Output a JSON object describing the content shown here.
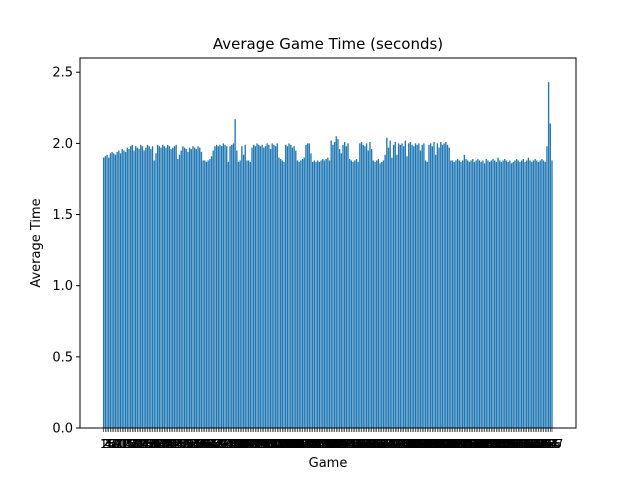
{
  "chart_data": {
    "type": "bar",
    "title": "Average Game Time (seconds)",
    "xlabel": "Game",
    "ylabel": "Average Time",
    "ylim": [
      0,
      2.6
    ],
    "yticks": [
      "0.0",
      "0.5",
      "1.0",
      "1.5",
      "2.0",
      "2.5"
    ],
    "xtick_labels_note": "x tick labels are illegibly overlapping game numbers (approx 1 to 200+); rendered as dense overlapping text",
    "grid": false,
    "legend": false,
    "bar_color": "#1f77b4",
    "values": [
      1.9,
      1.91,
      1.92,
      1.9,
      1.93,
      1.94,
      1.93,
      1.92,
      1.94,
      1.95,
      1.93,
      1.96,
      1.95,
      1.94,
      1.97,
      1.96,
      1.98,
      1.99,
      1.95,
      1.98,
      1.97,
      1.96,
      1.99,
      1.98,
      1.95,
      1.97,
      1.99,
      1.98,
      1.96,
      1.98,
      1.88,
      1.93,
      1.99,
      1.98,
      1.97,
      1.99,
      1.98,
      1.97,
      1.99,
      1.98,
      1.96,
      1.97,
      1.98,
      1.99,
      1.89,
      1.92,
      1.95,
      1.98,
      1.97,
      1.96,
      1.94,
      1.97,
      1.96,
      1.98,
      1.97,
      1.96,
      1.98,
      1.97,
      1.94,
      1.88,
      1.88,
      1.87,
      1.88,
      1.89,
      1.91,
      1.95,
      1.98,
      1.99,
      1.98,
      1.99,
      1.98,
      2.0,
      1.99,
      1.98,
      1.87,
      1.98,
      1.99,
      2.0,
      2.17,
      1.95,
      1.87,
      1.88,
      1.98,
      1.92,
      1.99,
      1.88,
      1.88,
      1.87,
      1.97,
      1.99,
      1.98,
      2.0,
      1.99,
      1.98,
      1.99,
      1.97,
      1.98,
      2.0,
      1.99,
      1.96,
      2.0,
      1.99,
      1.98,
      2.0,
      1.9,
      1.89,
      1.88,
      1.87,
      1.99,
      1.98,
      2.0,
      1.99,
      1.97,
      1.98,
      1.95,
      1.88,
      1.87,
      1.88,
      1.89,
      1.9,
      1.99,
      2.0,
      2.0,
      1.93,
      1.87,
      1.88,
      1.87,
      1.88,
      1.87,
      1.88,
      1.89,
      1.88,
      1.89,
      1.9,
      1.88,
      2.02,
      1.99,
      2.01,
      2.05,
      2.03,
      1.96,
      1.93,
      1.99,
      2.01,
      1.98,
      2.0,
      1.89,
      1.88,
      1.87,
      1.88,
      1.89,
      1.87,
      2.0,
      2.01,
      1.99,
      1.98,
      2.0,
      1.95,
      2.01,
      1.96,
      1.88,
      1.87,
      1.88,
      1.89,
      1.86,
      1.87,
      1.88,
      1.92,
      2.04,
      1.97,
      2.02,
      1.9,
      1.99,
      2.01,
      1.92,
      2.0,
      1.99,
      2.0,
      1.98,
      2.02,
      1.91,
      2.0,
      2.01,
      1.99,
      1.98,
      2.0,
      1.99,
      2.0,
      1.95,
      1.99,
      2.0,
      1.88,
      1.87,
      1.99,
      2.0,
      1.98,
      2.01,
      1.92,
      2.0,
      1.97,
      2.01,
      1.99,
      2.0,
      2.01,
      1.99,
      1.97,
      1.88,
      1.88,
      1.87,
      1.88,
      1.89,
      1.88,
      1.87,
      1.88,
      1.92,
      1.89,
      1.88,
      1.87,
      1.88,
      1.89,
      1.87,
      1.88,
      1.89,
      1.88,
      1.87,
      1.88,
      1.86,
      1.89,
      1.88,
      1.87,
      1.88,
      1.89,
      1.88,
      1.87,
      1.9,
      1.88,
      1.87,
      1.88,
      1.89,
      1.88,
      1.87,
      1.88,
      1.86,
      1.87,
      1.88,
      1.89,
      1.88,
      1.87,
      1.88,
      1.89,
      1.87,
      1.88,
      1.9,
      1.88,
      1.87,
      1.88,
      1.89,
      1.88,
      1.87,
      1.88,
      1.89,
      1.88,
      1.87,
      1.98,
      2.43,
      2.14,
      1.88
    ]
  }
}
